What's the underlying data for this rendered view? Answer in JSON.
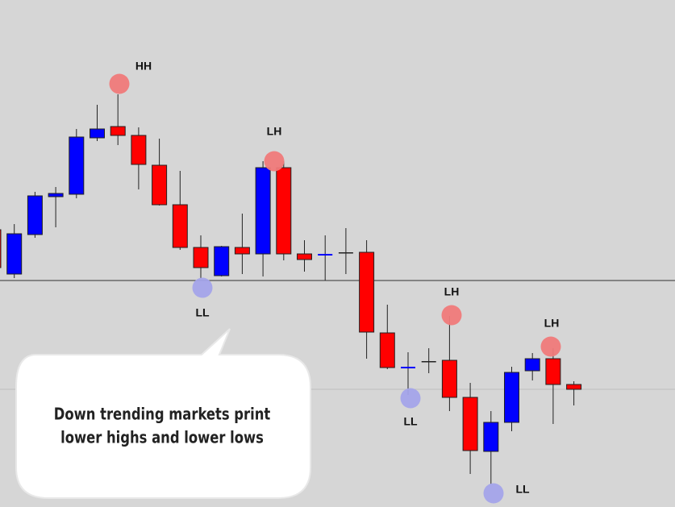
{
  "chart_data": {
    "type": "candlestick",
    "up_color": "#0000ff",
    "down_color": "#ff0000",
    "ylim": [
      0,
      629
    ],
    "candles": [
      {
        "open": 344,
        "high": 351,
        "low": 291,
        "close": 297
      },
      {
        "open": 289,
        "high": 351,
        "low": 284,
        "close": 339
      },
      {
        "open": 338,
        "high": 391,
        "low": 334,
        "close": 386
      },
      {
        "open": 385,
        "high": 397,
        "low": 347,
        "close": 389
      },
      {
        "open": 388,
        "high": 469,
        "low": 383,
        "close": 459
      },
      {
        "open": 458,
        "high": 499,
        "low": 454,
        "close": 469
      },
      {
        "open": 472,
        "high": 512,
        "low": 449,
        "close": 461
      },
      {
        "open": 461,
        "high": 471,
        "low": 394,
        "close": 425
      },
      {
        "open": 424,
        "high": 457,
        "low": 374,
        "close": 375
      },
      {
        "open": 375,
        "high": 417,
        "low": 319,
        "close": 322
      },
      {
        "open": 322,
        "high": 337,
        "low": 284,
        "close": 297
      },
      {
        "open": 287,
        "high": 324,
        "low": 286,
        "close": 323
      },
      {
        "open": 322,
        "high": 364,
        "low": 289,
        "close": 314
      },
      {
        "open": 314,
        "high": 429,
        "low": 286,
        "close": 421
      },
      {
        "open": 421,
        "high": 429,
        "low": 306,
        "close": 314
      },
      {
        "open": 314,
        "high": 331,
        "low": 292,
        "close": 307
      },
      {
        "open": 312,
        "high": 337,
        "low": 281,
        "close": 314
      },
      {
        "open": 316,
        "high": 346,
        "low": 289,
        "close": 316
      },
      {
        "open": 316,
        "high": 331,
        "low": 184,
        "close": 217
      },
      {
        "open": 216,
        "high": 251,
        "low": 171,
        "close": 173
      },
      {
        "open": 172,
        "high": 192,
        "low": 139,
        "close": 174
      },
      {
        "open": 181,
        "high": 197,
        "low": 166,
        "close": 181
      },
      {
        "open": 182,
        "high": 237,
        "low": 119,
        "close": 136
      },
      {
        "open": 136,
        "high": 154,
        "low": 41,
        "close": 70
      },
      {
        "open": 69,
        "high": 119,
        "low": 28,
        "close": 105
      },
      {
        "open": 105,
        "high": 174,
        "low": 94,
        "close": 167
      },
      {
        "open": 169,
        "high": 191,
        "low": 157,
        "close": 184
      },
      {
        "open": 184,
        "high": 197,
        "low": 103,
        "close": 152
      },
      {
        "open": 152,
        "high": 156,
        "low": 126,
        "close": 146
      }
    ],
    "annotations": [
      {
        "label": "HH",
        "kind": "high"
      },
      {
        "label": "LL",
        "kind": "low"
      },
      {
        "label": "LH",
        "kind": "high"
      },
      {
        "label": "LH",
        "kind": "high"
      },
      {
        "label": "LL",
        "kind": "low"
      },
      {
        "label": "LH",
        "kind": "high"
      },
      {
        "label": "LL",
        "kind": "low"
      }
    ],
    "callout": [
      "Down trending markets print",
      "lower highs and lower lows"
    ]
  }
}
